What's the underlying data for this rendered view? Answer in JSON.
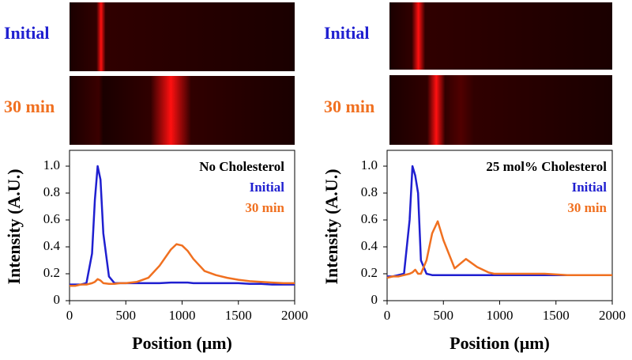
{
  "chart_data": [
    {
      "type": "line",
      "image_labels": [
        "Initial",
        "30 min"
      ],
      "annotation": "No Cholesterol",
      "x_label": "Position (μm)",
      "y_label": "Intensity (A.U.)",
      "x": [
        0,
        50,
        100,
        150,
        200,
        225,
        250,
        275,
        300,
        350,
        400,
        450,
        500,
        600,
        700,
        800,
        900,
        950,
        1000,
        1050,
        1100,
        1200,
        1300,
        1400,
        1500,
        1600,
        1700,
        1800,
        1900,
        2000
      ],
      "series": [
        {
          "name": "Initial",
          "color": "#1f1fd0",
          "values": [
            0.12,
            0.12,
            0.12,
            0.13,
            0.35,
            0.75,
            1.0,
            0.9,
            0.5,
            0.18,
            0.13,
            0.13,
            0.13,
            0.13,
            0.13,
            0.13,
            0.135,
            0.135,
            0.135,
            0.135,
            0.13,
            0.13,
            0.13,
            0.13,
            0.13,
            0.125,
            0.125,
            0.12,
            0.12,
            0.12
          ]
        },
        {
          "name": "30 min",
          "color": "#f07020",
          "values": [
            0.11,
            0.11,
            0.12,
            0.12,
            0.13,
            0.14,
            0.16,
            0.15,
            0.13,
            0.125,
            0.125,
            0.13,
            0.13,
            0.14,
            0.17,
            0.26,
            0.38,
            0.42,
            0.41,
            0.37,
            0.31,
            0.22,
            0.19,
            0.17,
            0.155,
            0.145,
            0.14,
            0.135,
            0.13,
            0.13
          ]
        }
      ],
      "xlim": [
        0,
        2000
      ],
      "xticks": [
        0,
        500,
        1000,
        1500,
        2000
      ],
      "ylim": [
        0,
        1.1
      ],
      "yticks": [
        0,
        0.2,
        0.4,
        0.6,
        0.8,
        {
          "value": 1,
          "label": "1.0"
        }
      ]
    },
    {
      "type": "line",
      "image_labels": [
        "Initial",
        "30 min"
      ],
      "annotation": "25 mol% Cholesterol",
      "x_label": "Position (μm)",
      "y_label": "Intensity (A.U.)",
      "x": [
        0,
        50,
        100,
        150,
        200,
        225,
        250,
        275,
        300,
        350,
        400,
        450,
        500,
        600,
        700,
        800,
        900,
        950,
        1000,
        1050,
        1100,
        1200,
        1300,
        1400,
        1500,
        1600,
        1700,
        1800,
        1900,
        2000
      ],
      "series": [
        {
          "name": "Initial",
          "color": "#1f1fd0",
          "values": [
            0.18,
            0.18,
            0.19,
            0.2,
            0.6,
            1.0,
            0.93,
            0.8,
            0.3,
            0.2,
            0.19,
            0.19,
            0.19,
            0.19,
            0.19,
            0.19,
            0.19,
            0.19,
            0.19,
            0.19,
            0.19,
            0.19,
            0.19,
            0.19,
            0.19,
            0.19,
            0.19,
            0.19,
            0.19,
            0.19
          ]
        },
        {
          "name": "30 min",
          "color": "#f07020",
          "values": [
            0.17,
            0.18,
            0.18,
            0.19,
            0.2,
            0.21,
            0.23,
            0.2,
            0.2,
            0.3,
            0.5,
            0.59,
            0.45,
            0.24,
            0.31,
            0.25,
            0.21,
            0.2,
            0.2,
            0.2,
            0.2,
            0.2,
            0.2,
            0.2,
            0.195,
            0.19,
            0.19,
            0.19,
            0.19,
            0.19
          ]
        }
      ],
      "xlim": [
        0,
        2000
      ],
      "xticks": [
        0,
        500,
        1000,
        1500,
        2000
      ],
      "ylim": [
        0,
        1.1
      ],
      "yticks": [
        0,
        0.2,
        0.4,
        0.6,
        0.8,
        {
          "value": 1,
          "label": "1.0"
        }
      ]
    }
  ]
}
